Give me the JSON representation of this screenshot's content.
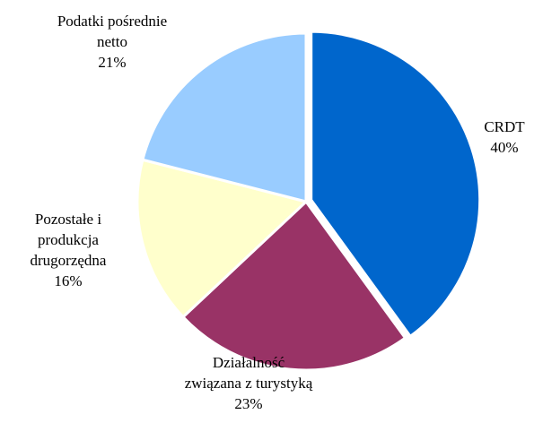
{
  "chart_data": {
    "type": "pie",
    "categories": [
      "CRDT",
      "Działalność związana z turystyką",
      "Pozostałe i produkcja drugorzędna",
      "Podatki pośrednie netto"
    ],
    "values": [
      40,
      23,
      16,
      21
    ],
    "value_labels": [
      "40%",
      "23%",
      "16%",
      "21%"
    ],
    "colors": [
      "#0066cc",
      "#993366",
      "#ffffcc",
      "#99ccff"
    ]
  }
}
